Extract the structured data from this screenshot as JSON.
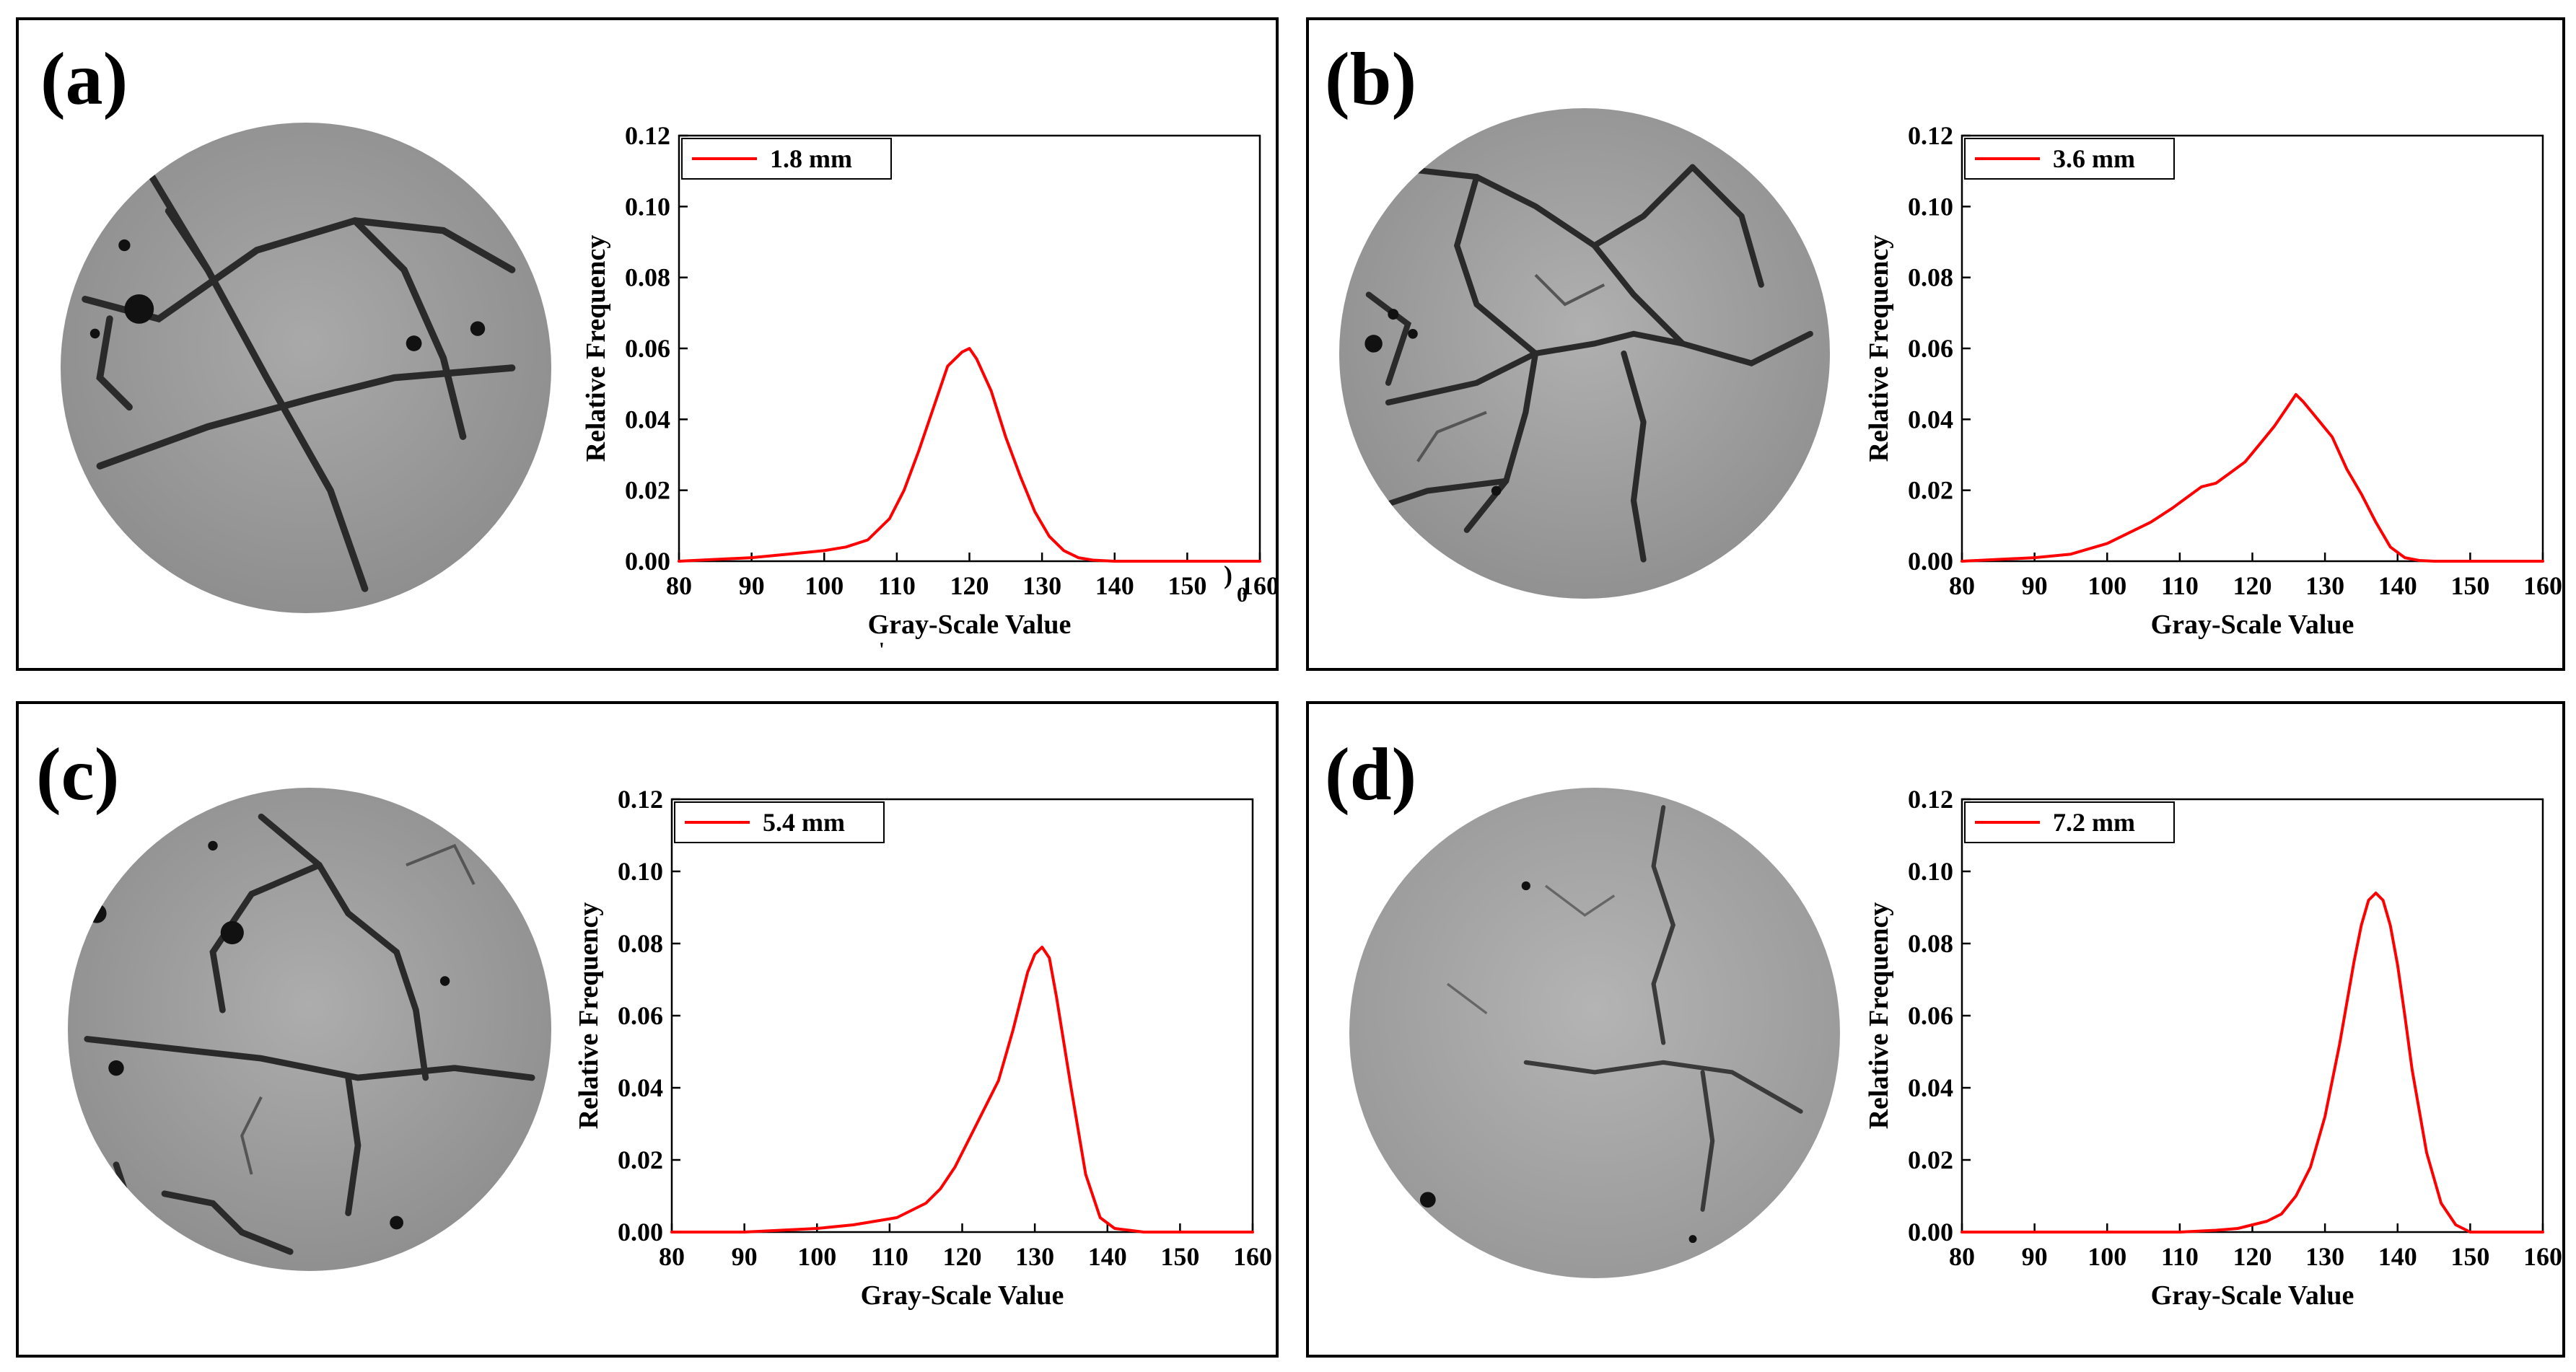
{
  "figure": {
    "colors": {
      "curve": "#ff0000",
      "axis": "#000000"
    },
    "artifacts": {
      "stray_zero": "0",
      "stray_paren": ")",
      "stray_tick": "'"
    }
  },
  "chart_data": [
    {
      "panel": "(a)",
      "type": "line",
      "title": "",
      "xlabel": "Gray-Scale Value",
      "ylabel": "Relative Frequency",
      "xlim": [
        80,
        160
      ],
      "ylim": [
        0,
        0.12
      ],
      "xticks": [
        "80",
        "90",
        "100",
        "110",
        "120",
        "130",
        "140",
        "150",
        "160"
      ],
      "yticks": [
        "0.00",
        "0.02",
        "0.04",
        "0.06",
        "0.08",
        "0.10",
        "0.12"
      ],
      "legend": "1.8 mm",
      "legend_position": "top-left",
      "series": [
        {
          "name": "1.8 mm",
          "x": [
            80,
            85,
            90,
            95,
            100,
            103,
            106,
            109,
            111,
            113,
            115,
            117,
            119,
            120,
            121,
            123,
            125,
            127,
            129,
            131,
            133,
            135,
            137,
            140,
            145,
            160
          ],
          "y": [
            0.0,
            0.0005,
            0.001,
            0.002,
            0.003,
            0.004,
            0.006,
            0.012,
            0.02,
            0.031,
            0.043,
            0.055,
            0.059,
            0.06,
            0.057,
            0.048,
            0.035,
            0.024,
            0.014,
            0.007,
            0.003,
            0.001,
            0.0003,
            0.0,
            0.0,
            0.0
          ]
        }
      ]
    },
    {
      "panel": "(b)",
      "type": "line",
      "title": "",
      "xlabel": "Gray-Scale Value",
      "ylabel": "Relative Frequency",
      "xlim": [
        80,
        160
      ],
      "ylim": [
        0,
        0.12
      ],
      "xticks": [
        "80",
        "90",
        "100",
        "110",
        "120",
        "130",
        "140",
        "150",
        "160"
      ],
      "yticks": [
        "0.00",
        "0.02",
        "0.04",
        "0.06",
        "0.08",
        "0.10",
        "0.12"
      ],
      "legend": "3.6 mm",
      "legend_position": "top-left",
      "series": [
        {
          "name": "3.6 mm",
          "x": [
            80,
            85,
            90,
            95,
            100,
            103,
            106,
            109,
            111,
            113,
            115,
            117,
            119,
            121,
            123,
            125,
            126,
            127,
            129,
            131,
            133,
            135,
            137,
            139,
            141,
            143,
            145,
            160
          ],
          "y": [
            0.0,
            0.0005,
            0.001,
            0.002,
            0.005,
            0.008,
            0.011,
            0.015,
            0.018,
            0.021,
            0.022,
            0.025,
            0.028,
            0.033,
            0.038,
            0.044,
            0.047,
            0.045,
            0.04,
            0.035,
            0.026,
            0.019,
            0.011,
            0.004,
            0.001,
            0.0002,
            0.0,
            0.0
          ]
        }
      ]
    },
    {
      "panel": "(c)",
      "type": "line",
      "title": "",
      "xlabel": "Gray-Scale Value",
      "ylabel": "Relative Frequency",
      "xlim": [
        80,
        160
      ],
      "ylim": [
        0,
        0.12
      ],
      "xticks": [
        "80",
        "90",
        "100",
        "110",
        "120",
        "130",
        "140",
        "150",
        "160"
      ],
      "yticks": [
        "0.00",
        "0.02",
        "0.04",
        "0.06",
        "0.08",
        "0.10",
        "0.12"
      ],
      "legend": "5.4 mm",
      "legend_position": "top-left",
      "series": [
        {
          "name": "5.4 mm",
          "x": [
            80,
            90,
            95,
            100,
            105,
            108,
            111,
            113,
            115,
            117,
            119,
            121,
            123,
            125,
            127,
            129,
            130,
            131,
            132,
            133,
            135,
            137,
            139,
            141,
            145,
            160
          ],
          "y": [
            0.0,
            0.0,
            0.0005,
            0.001,
            0.002,
            0.003,
            0.004,
            0.006,
            0.008,
            0.012,
            0.018,
            0.026,
            0.034,
            0.042,
            0.056,
            0.072,
            0.077,
            0.079,
            0.076,
            0.065,
            0.04,
            0.016,
            0.004,
            0.001,
            0.0,
            0.0
          ]
        }
      ]
    },
    {
      "panel": "(d)",
      "type": "line",
      "title": "",
      "xlabel": "Gray-Scale Value",
      "ylabel": "Relative Frequency",
      "xlim": [
        80,
        160
      ],
      "ylim": [
        0,
        0.12
      ],
      "xticks": [
        "80",
        "90",
        "100",
        "110",
        "120",
        "130",
        "140",
        "150",
        "160"
      ],
      "yticks": [
        "0.00",
        "0.02",
        "0.04",
        "0.06",
        "0.08",
        "0.10",
        "0.12"
      ],
      "legend": "7.2 mm",
      "legend_position": "top-left",
      "series": [
        {
          "name": "7.2 mm",
          "x": [
            80,
            110,
            115,
            118,
            120,
            122,
            124,
            126,
            128,
            130,
            132,
            134,
            135,
            136,
            137,
            138,
            139,
            140,
            141,
            142,
            144,
            146,
            148,
            150,
            160
          ],
          "y": [
            0.0,
            0.0,
            0.0005,
            0.001,
            0.002,
            0.003,
            0.005,
            0.01,
            0.018,
            0.032,
            0.052,
            0.075,
            0.085,
            0.092,
            0.094,
            0.092,
            0.085,
            0.074,
            0.06,
            0.045,
            0.022,
            0.008,
            0.002,
            0.0,
            0.0
          ]
        }
      ]
    }
  ]
}
